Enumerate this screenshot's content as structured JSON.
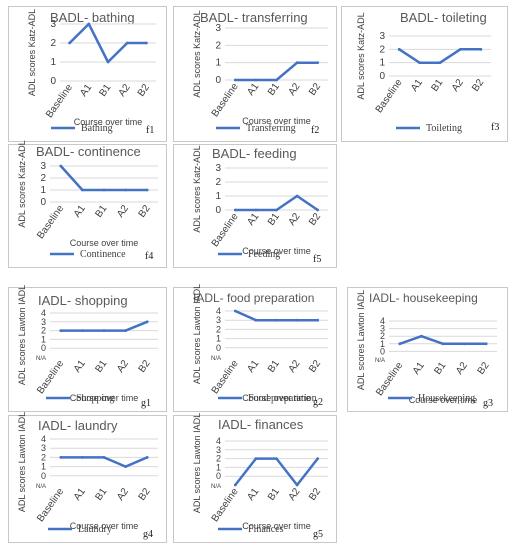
{
  "colors": {
    "series": "#4472c4",
    "grid": "#d9d9d9",
    "frame": "#c8c8c8",
    "text": "#404040"
  },
  "chart_data": [
    {
      "id": "f1",
      "type": "line",
      "title": "BADL- bathing",
      "ylabel": "ADL scores Katz-ADL",
      "xlabel": "Course over time",
      "legend": "Bathing",
      "legend_position": "bottom",
      "grid": true,
      "categories": [
        "Baseline",
        "A1",
        "B1",
        "A2",
        "B2"
      ],
      "ylim": [
        0,
        3
      ],
      "yticks": [
        0,
        1,
        2,
        3
      ],
      "series": [
        {
          "name": "Bathing",
          "values": [
            2,
            3,
            1,
            2,
            2
          ]
        }
      ]
    },
    {
      "id": "f2",
      "type": "line",
      "title": "BADL- transferring",
      "ylabel": "ADL scores Katz-ADL",
      "xlabel": "Course over time",
      "legend": "Transferring",
      "legend_position": "bottom",
      "grid": true,
      "categories": [
        "Baseline",
        "A1",
        "B1",
        "A2",
        "B2"
      ],
      "ylim": [
        0,
        3
      ],
      "yticks": [
        0,
        1,
        2,
        3
      ],
      "series": [
        {
          "name": "Transferring",
          "values": [
            0,
            0,
            0,
            1,
            1
          ]
        }
      ]
    },
    {
      "id": "f3",
      "type": "line",
      "title": "BADL- toileting",
      "ylabel": "ADL scores Katz-ADL",
      "xlabel": "",
      "legend": "Toileting",
      "legend_position": "bottom",
      "grid": true,
      "categories": [
        "Baseline",
        "A1",
        "B1",
        "A2",
        "B2"
      ],
      "ylim": [
        0,
        3
      ],
      "yticks": [
        0,
        1,
        2,
        3
      ],
      "series": [
        {
          "name": "Toileting",
          "values": [
            2,
            1,
            1,
            2,
            2
          ]
        }
      ]
    },
    {
      "id": "f4",
      "type": "line",
      "title": "BADL- continence",
      "ylabel": "ADL scores Katz-ADL",
      "xlabel": "Course over time",
      "legend": "Continence",
      "legend_position": "bottom",
      "grid": true,
      "categories": [
        "Baseline",
        "A1",
        "B1",
        "A2",
        "B2"
      ],
      "ylim": [
        0,
        3
      ],
      "yticks": [
        0,
        1,
        2,
        3
      ],
      "series": [
        {
          "name": "Continence",
          "values": [
            3,
            1,
            1,
            1,
            1
          ]
        }
      ]
    },
    {
      "id": "f5",
      "type": "line",
      "title": "BADL- feeding",
      "ylabel": "ADL scores Katz-ADL",
      "xlabel": "Course over time",
      "legend": "Feeding",
      "legend_position": "bottom",
      "grid": true,
      "categories": [
        "Baseline",
        "A1",
        "B1",
        "A2",
        "B2"
      ],
      "ylim": [
        0,
        3
      ],
      "yticks": [
        0,
        1,
        2,
        3
      ],
      "series": [
        {
          "name": "Feeding",
          "values": [
            0,
            0,
            0,
            1,
            0
          ]
        }
      ]
    },
    {
      "id": "g1",
      "type": "line",
      "title": "IADL- shopping",
      "ylabel": "ADL scores Lawton IADL",
      "xlabel": "Course over time",
      "legend": "Shopping",
      "legend_position": "bottom",
      "grid": true,
      "na_label": "N/A",
      "categories": [
        "Baseline",
        "A1",
        "B1",
        "A2",
        "B2"
      ],
      "ylim": [
        -1,
        4
      ],
      "yticks": [
        0,
        1,
        2,
        3,
        4
      ],
      "series": [
        {
          "name": "Shopping",
          "values": [
            2,
            2,
            2,
            2,
            3
          ]
        }
      ]
    },
    {
      "id": "g2",
      "type": "line",
      "title": "IADL- food preparation",
      "ylabel": "ADL scores Lawton IADL",
      "xlabel": "Course over time",
      "legend": "Food preparation",
      "legend_position": "bottom",
      "grid": true,
      "na_label": "N/A",
      "categories": [
        "Baseline",
        "A1",
        "B1",
        "A2",
        "B2"
      ],
      "ylim": [
        -1,
        4
      ],
      "yticks": [
        0,
        1,
        2,
        3,
        4
      ],
      "series": [
        {
          "name": "Food preparation",
          "values": [
            4,
            3,
            3,
            3,
            3
          ]
        }
      ]
    },
    {
      "id": "g3",
      "type": "line",
      "title": "IADL- housekeeping",
      "ylabel": "ADL scores Lawton IADL",
      "xlabel": "Course over time",
      "legend": "Housekeeping",
      "legend_position": "bottom",
      "grid": true,
      "na_label": "N/A",
      "categories": [
        "Baseline",
        "A1",
        "B1",
        "A2",
        "B2"
      ],
      "ylim": [
        -1,
        4
      ],
      "yticks": [
        0,
        1,
        2,
        3,
        4
      ],
      "series": [
        {
          "name": "Housekeeping",
          "values": [
            1,
            2,
            1,
            1,
            1
          ]
        }
      ]
    },
    {
      "id": "g4",
      "type": "line",
      "title": "IADL- laundry",
      "ylabel": "ADL scores Lawton IADL",
      "xlabel": "Course over time",
      "legend": "Laundry",
      "legend_position": "bottom",
      "grid": true,
      "na_label": "N/A",
      "categories": [
        "Baseline",
        "A1",
        "B1",
        "A2",
        "B2"
      ],
      "ylim": [
        -1,
        4
      ],
      "yticks": [
        0,
        1,
        2,
        3,
        4
      ],
      "series": [
        {
          "name": "Laundry",
          "values": [
            2,
            2,
            2,
            1,
            2
          ]
        }
      ]
    },
    {
      "id": "g5",
      "type": "line",
      "title": "IADL- finances",
      "ylabel": "ADL scores Lawton IADL",
      "xlabel": "Course over time",
      "legend": "Finances",
      "legend_position": "bottom",
      "grid": true,
      "na_label": "N/A",
      "categories": [
        "Baseline",
        "A1",
        "B1",
        "A2",
        "B2"
      ],
      "ylim": [
        -1,
        4
      ],
      "yticks": [
        0,
        1,
        2,
        3,
        4
      ],
      "series": [
        {
          "name": "Finances",
          "values": [
            -1,
            2,
            2,
            -1,
            2
          ]
        }
      ]
    }
  ]
}
